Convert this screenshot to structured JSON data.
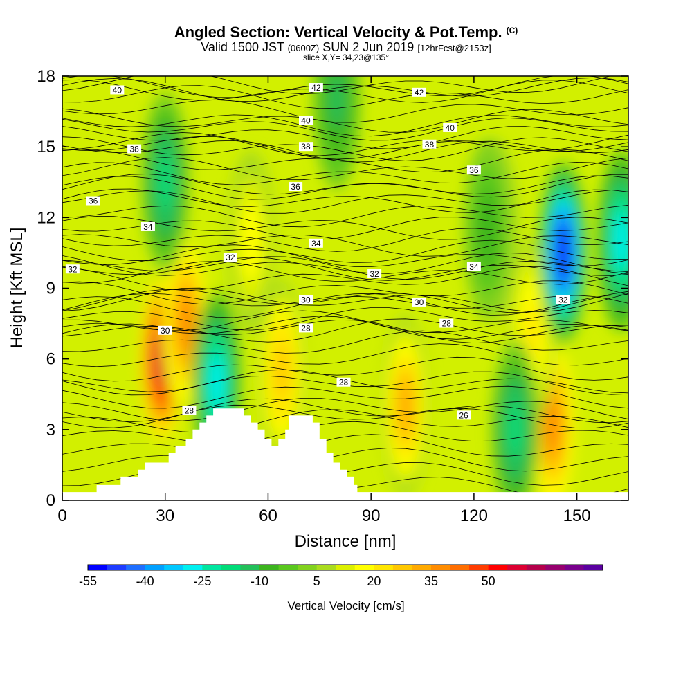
{
  "title": {
    "main": "Angled Section: Vertical Velocity & Pot.Temp.",
    "credit": "(C)",
    "valid_prefix": "Valid 1500 JST",
    "utc": "(0600Z)",
    "date": "SUN 2 Jun 2019",
    "forecast": "[12hrFcst@2153z]",
    "slice": "slice X,Y= 34,23@135°"
  },
  "colorbar": {
    "label": "Vertical Velocity [cm/s]",
    "tick_labels": [
      "-55",
      "-40",
      "-25",
      "-10",
      "5",
      "20",
      "35",
      "50"
    ],
    "colors": [
      "#0000ff",
      "#1e3cff",
      "#1e6eff",
      "#00a0ff",
      "#00c8ff",
      "#00f0f0",
      "#00e6a0",
      "#00dc78",
      "#22c05a",
      "#3cb41e",
      "#5ac81e",
      "#82d21e",
      "#aadc1e",
      "#dcf000",
      "#ffff00",
      "#ffe600",
      "#ffc800",
      "#ffaa00",
      "#ff8c00",
      "#ff6e00",
      "#ff3c00",
      "#ff0000",
      "#dc0032",
      "#b4004b",
      "#96006e",
      "#78008c",
      "#5a00a0"
    ]
  },
  "chart_data": {
    "type": "heatmap",
    "title": "Angled Section: Vertical Velocity & Pot.Temp.",
    "xlabel": "Distance [nm]",
    "ylabel": "Height [Kft MSL]",
    "xlim": [
      0,
      165
    ],
    "ylim": [
      0,
      18
    ],
    "x_ticks": [
      0,
      30,
      60,
      90,
      120,
      150
    ],
    "y_ticks": [
      0,
      3,
      6,
      9,
      12,
      15,
      18
    ],
    "x_tick_labels": [
      "0",
      "30",
      "60",
      "90",
      "120",
      "150"
    ],
    "y_tick_labels": [
      "0",
      "3",
      "6",
      "9",
      "12",
      "15",
      "18"
    ],
    "fill_variable": "Vertical Velocity [cm/s]",
    "fill_range": [
      -55,
      60
    ],
    "fill_step": 5,
    "contour_variable": "Potential temperature (C)",
    "updraft_cores": [
      {
        "x": 29,
        "z": 6.0,
        "value": 58
      },
      {
        "x": 36,
        "z": 7.5,
        "value": 38
      },
      {
        "x": 100,
        "z": 4.0,
        "value": 33
      },
      {
        "x": 143,
        "z": 3.2,
        "value": 38
      },
      {
        "x": 64,
        "z": 5.5,
        "value": 28
      },
      {
        "x": 55,
        "z": 11.0,
        "value": 18
      },
      {
        "x": 126,
        "z": 11.5,
        "value": 18
      },
      {
        "x": 137,
        "z": 7.2,
        "value": 20
      }
    ],
    "downdraft_cores": [
      {
        "x": 146,
        "z": 10.5,
        "value": -55
      },
      {
        "x": 163,
        "z": 11.0,
        "value": -30
      },
      {
        "x": 45,
        "z": 5.0,
        "value": -28
      },
      {
        "x": 30,
        "z": 13.5,
        "value": -18
      },
      {
        "x": 132,
        "z": 3.0,
        "value": -18
      },
      {
        "x": 124,
        "z": 11.5,
        "value": -10
      },
      {
        "x": 80,
        "z": 17.0,
        "value": -12
      }
    ],
    "contour_labels": [
      {
        "text": "40",
        "x": 16,
        "z": 17.4
      },
      {
        "text": "42",
        "x": 74,
        "z": 17.5
      },
      {
        "text": "42",
        "x": 104,
        "z": 17.3
      },
      {
        "text": "40",
        "x": 71,
        "z": 16.1
      },
      {
        "text": "40",
        "x": 113,
        "z": 15.8
      },
      {
        "text": "38",
        "x": 21,
        "z": 14.9
      },
      {
        "text": "38",
        "x": 71,
        "z": 15.0
      },
      {
        "text": "38",
        "x": 107,
        "z": 15.1
      },
      {
        "text": "36",
        "x": 120,
        "z": 14.0
      },
      {
        "text": "36",
        "x": 68,
        "z": 13.3
      },
      {
        "text": "36",
        "x": 9,
        "z": 12.7
      },
      {
        "text": "34",
        "x": 25,
        "z": 11.6
      },
      {
        "text": "34",
        "x": 74,
        "z": 10.9
      },
      {
        "text": "34",
        "x": 120,
        "z": 9.9
      },
      {
        "text": "32",
        "x": 3,
        "z": 9.8
      },
      {
        "text": "32",
        "x": 49,
        "z": 10.3
      },
      {
        "text": "32",
        "x": 91,
        "z": 9.6
      },
      {
        "text": "32",
        "x": 146,
        "z": 8.5
      },
      {
        "text": "30",
        "x": 71,
        "z": 8.5
      },
      {
        "text": "30",
        "x": 104,
        "z": 8.4
      },
      {
        "text": "30",
        "x": 30,
        "z": 7.2
      },
      {
        "text": "28",
        "x": 71,
        "z": 7.3
      },
      {
        "text": "28",
        "x": 112,
        "z": 7.5
      },
      {
        "text": "28",
        "x": 82,
        "z": 5.0
      },
      {
        "text": "28",
        "x": 37,
        "z": 3.8
      },
      {
        "text": "26",
        "x": 117,
        "z": 3.6
      }
    ],
    "terrain_steps": [
      [
        0,
        0.35
      ],
      [
        9,
        0.35
      ],
      [
        10,
        0.65
      ],
      [
        15,
        0.65
      ],
      [
        17,
        1.0
      ],
      [
        21,
        1.0
      ],
      [
        22,
        1.3
      ],
      [
        24,
        1.6
      ],
      [
        30,
        1.6
      ],
      [
        31,
        2.0
      ],
      [
        33,
        2.3
      ],
      [
        36,
        2.6
      ],
      [
        38,
        3.0
      ],
      [
        40,
        3.3
      ],
      [
        42,
        3.6
      ],
      [
        44,
        3.9
      ],
      [
        52,
        3.9
      ],
      [
        53,
        3.6
      ],
      [
        55,
        3.3
      ],
      [
        57,
        3.0
      ],
      [
        59,
        2.6
      ],
      [
        61,
        2.3
      ],
      [
        63,
        2.6
      ],
      [
        65,
        3.0
      ],
      [
        66,
        3.6
      ],
      [
        72,
        3.6
      ],
      [
        73,
        3.3
      ],
      [
        75,
        2.6
      ],
      [
        77,
        2.0
      ],
      [
        79,
        1.6
      ],
      [
        81,
        1.3
      ],
      [
        83,
        1.0
      ],
      [
        85,
        0.65
      ],
      [
        86,
        0.35
      ],
      [
        165,
        0.35
      ]
    ]
  }
}
